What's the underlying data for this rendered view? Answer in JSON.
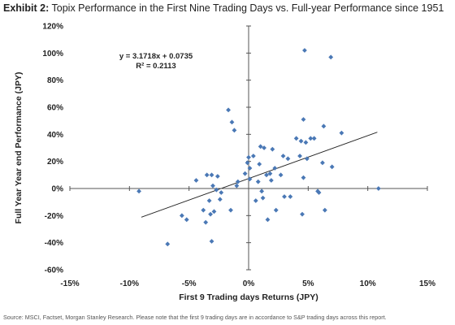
{
  "title": {
    "lead": "Exhibit 2:",
    "text": "Topix Performance in the First Nine Trading Days vs. Full-year Performance since 1951"
  },
  "source": "Source: MSCI, Factset, Morgan Stanley Research. Please note that the first 9 trading days are in accordance to S&P trading days across this report.",
  "chart_data": {
    "type": "scatter",
    "title": "Topix Performance in the First Nine Trading Days vs. Full-year Performance since 1951",
    "xlabel": "First 9 Trading days Returns (JPY)",
    "ylabel": "Full Year Year end  Performance (JPY)",
    "xlim": [
      -0.15,
      0.15
    ],
    "ylim": [
      -0.6,
      1.2
    ],
    "x_ticks": [
      "-15%",
      "-10%",
      "-5%",
      "0%",
      "5%",
      "10%",
      "15%"
    ],
    "y_ticks": [
      "120%",
      "100%",
      "80%",
      "60%",
      "40%",
      "20%",
      "0%",
      "-20%",
      "-40%",
      "-60%"
    ],
    "grid": false,
    "marker_color": "#4a78b5",
    "trendline": {
      "slope": 3.1718,
      "intercept": 0.0735,
      "equation": "y = 3.1718x + 0.0735",
      "r_squared": "R² = 0.2113",
      "color": "#222222"
    },
    "points": [
      [
        -0.092,
        -0.02
      ],
      [
        -0.068,
        -0.41
      ],
      [
        -0.056,
        -0.2
      ],
      [
        -0.052,
        -0.23
      ],
      [
        -0.044,
        0.06
      ],
      [
        -0.038,
        -0.16
      ],
      [
        -0.036,
        -0.25
      ],
      [
        -0.035,
        0.1
      ],
      [
        -0.033,
        -0.09
      ],
      [
        -0.032,
        -0.19
      ],
      [
        -0.031,
        -0.39
      ],
      [
        -0.031,
        0.1
      ],
      [
        -0.03,
        0.02
      ],
      [
        -0.029,
        -0.17
      ],
      [
        -0.027,
        -0.01
      ],
      [
        -0.026,
        0.09
      ],
      [
        -0.024,
        -0.08
      ],
      [
        -0.023,
        -0.03
      ],
      [
        -0.017,
        0.58
      ],
      [
        -0.015,
        -0.16
      ],
      [
        -0.014,
        0.49
      ],
      [
        -0.012,
        0.43
      ],
      [
        -0.01,
        0.02
      ],
      [
        -0.009,
        0.05
      ],
      [
        -0.003,
        0.11
      ],
      [
        -0.001,
        0.19
      ],
      [
        0.0,
        0.23
      ],
      [
        0.001,
        0.15
      ],
      [
        0.001,
        0.07
      ],
      [
        0.004,
        0.24
      ],
      [
        0.006,
        -0.09
      ],
      [
        0.008,
        0.05
      ],
      [
        0.009,
        0.18
      ],
      [
        0.01,
        0.31
      ],
      [
        0.011,
        -0.02
      ],
      [
        0.012,
        -0.07
      ],
      [
        0.013,
        0.3
      ],
      [
        0.015,
        0.1
      ],
      [
        0.016,
        -0.23
      ],
      [
        0.018,
        0.11
      ],
      [
        0.019,
        0.06
      ],
      [
        0.02,
        0.29
      ],
      [
        0.022,
        0.15
      ],
      [
        0.023,
        -0.16
      ],
      [
        0.027,
        0.1
      ],
      [
        0.029,
        0.24
      ],
      [
        0.03,
        -0.06
      ],
      [
        0.033,
        0.22
      ],
      [
        0.035,
        -0.06
      ],
      [
        0.04,
        0.37
      ],
      [
        0.043,
        0.24
      ],
      [
        0.044,
        0.35
      ],
      [
        0.045,
        -0.19
      ],
      [
        0.046,
        0.51
      ],
      [
        0.046,
        0.08
      ],
      [
        0.047,
        1.02
      ],
      [
        0.048,
        0.34
      ],
      [
        0.049,
        0.22
      ],
      [
        0.052,
        0.37
      ],
      [
        0.055,
        0.37
      ],
      [
        0.058,
        -0.02
      ],
      [
        0.059,
        -0.03
      ],
      [
        0.062,
        0.19
      ],
      [
        0.063,
        0.46
      ],
      [
        0.064,
        -0.16
      ],
      [
        0.069,
        0.97
      ],
      [
        0.07,
        0.16
      ],
      [
        0.078,
        0.41
      ],
      [
        0.109,
        0.0
      ]
    ]
  }
}
